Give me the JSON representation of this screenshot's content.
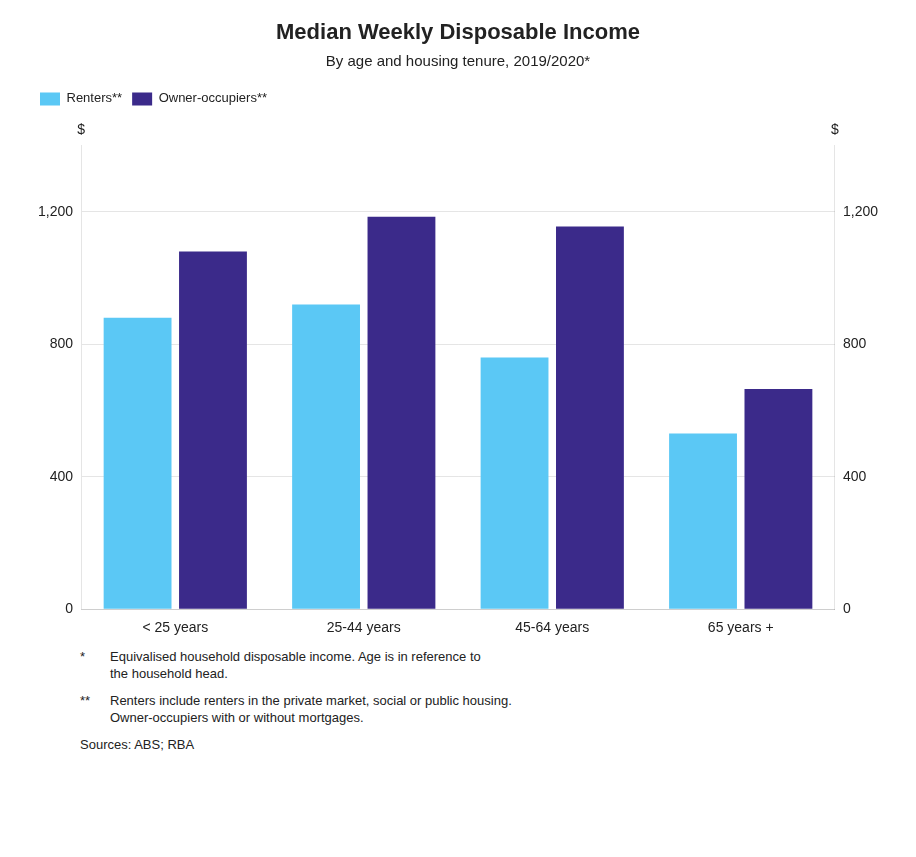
{
  "chart_data": {
    "type": "bar",
    "title": "Median Weekly Disposable Income",
    "subtitle": "By age and housing tenure, 2019/2020*",
    "categories": [
      "< 25 years",
      "25-44 years",
      "45-64 years",
      "65 years +"
    ],
    "series": [
      {
        "name": "Renters**",
        "color": "#5BC8F5",
        "values": [
          880,
          920,
          760,
          530
        ]
      },
      {
        "name": "Owner-occupiers**",
        "color": "#3B2A8A",
        "values": [
          1080,
          1185,
          1155,
          665
        ]
      }
    ],
    "ylim": [
      0,
      1400
    ],
    "yticks": [
      0,
      400,
      800,
      {
        "value": 1200,
        "label": "1,200"
      }
    ],
    "y2lim": [
      0,
      1400
    ],
    "y2ticks": [
      0,
      400,
      800,
      {
        "value": 1200,
        "label": "1,200"
      }
    ],
    "ylabel": "$",
    "y2label": "$",
    "grid": true,
    "legend": "upper left",
    "footnotes": [
      {
        "mark": "*",
        "text": "Equivalised household disposable income. Age is in reference to\nthe household head."
      },
      {
        "mark": "**",
        "text": "Renters include renters in the private market, social or public housing.\nOwner-occupiers with or without mortgages."
      }
    ],
    "source": "Sources: ABS; RBA"
  }
}
